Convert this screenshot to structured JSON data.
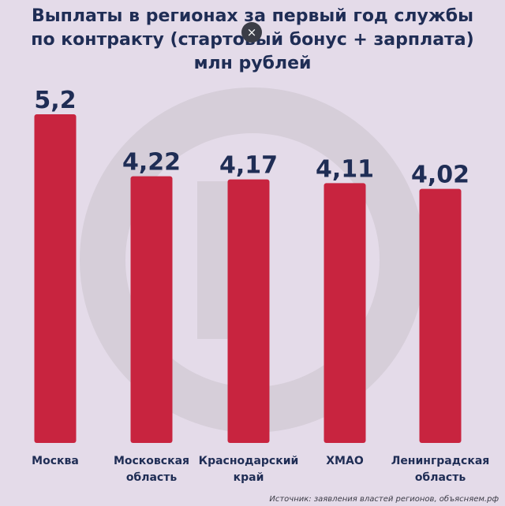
{
  "chart_data": {
    "type": "bar",
    "title_lines": [
      "Выплаты в регионах за первый год службы",
      "по контракту (стартовый бонус + зарплата)",
      "млн рублей"
    ],
    "categories": [
      [
        "Москва"
      ],
      [
        "Московская",
        "область"
      ],
      [
        "Краснодарский",
        "край"
      ],
      [
        "ХМАО"
      ],
      [
        "Ленинградская",
        "область"
      ]
    ],
    "values": [
      5.2,
      4.22,
      4.17,
      4.11,
      4.02
    ],
    "value_labels": [
      "5,2",
      "4,22",
      "4,17",
      "4,11",
      "4,02"
    ],
    "ylim": [
      0,
      5.2
    ],
    "grid": false,
    "legend": "none",
    "colors": {
      "bar": "#c8243f",
      "value_text": "#1f2d55",
      "category_text": "#1f2d55",
      "background": "#e4dbe9",
      "watermark": "#d6ced9"
    }
  },
  "close_button": {
    "label": "×",
    "icon": "close-icon"
  },
  "source": "Источник: заявления властей регионов, объясняем.рф"
}
